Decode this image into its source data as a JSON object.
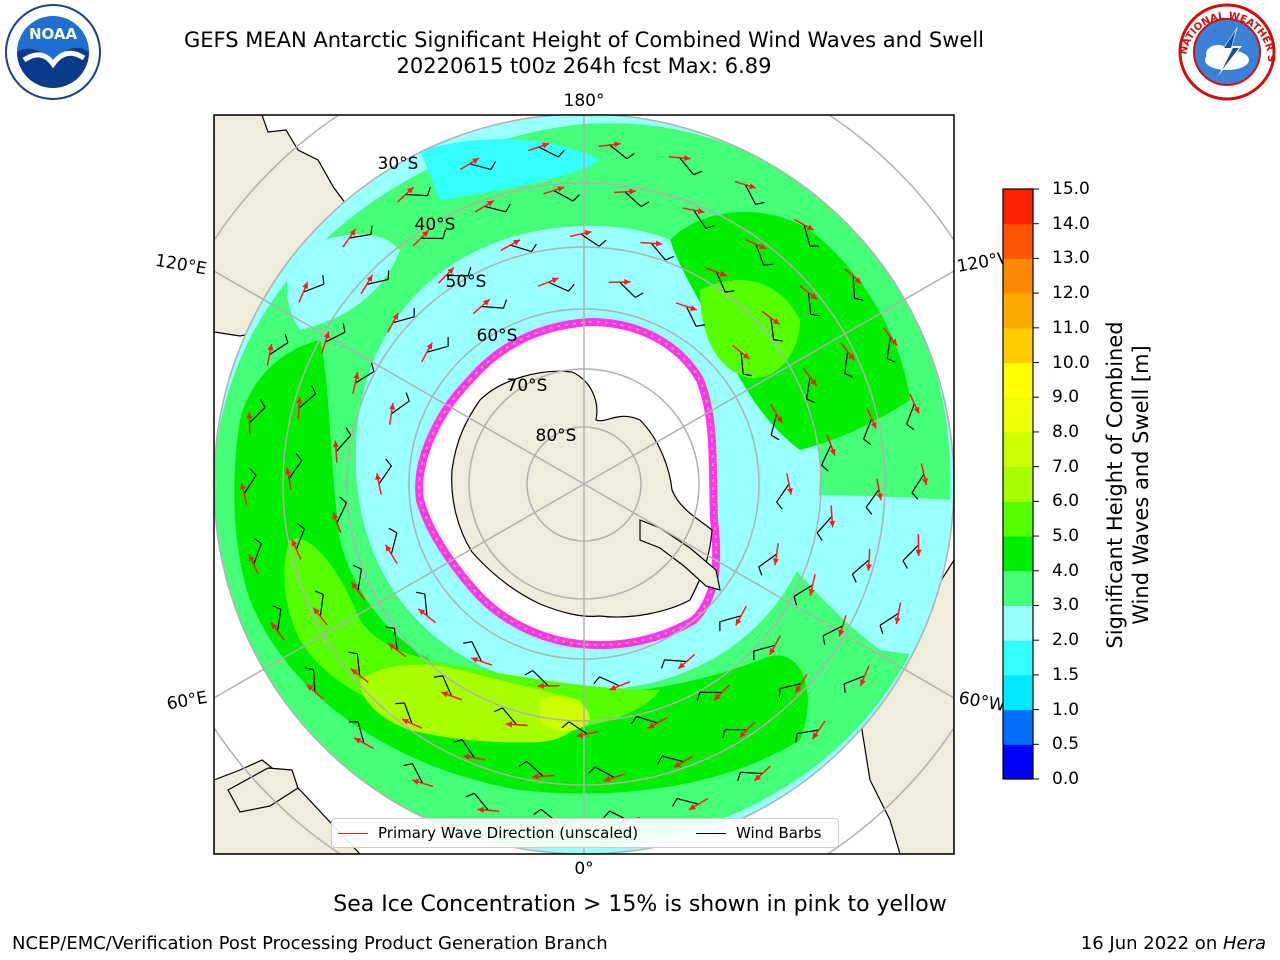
{
  "header": {
    "title_line1": "GEFS MEAN Antarctic Significant Height of Combined Wind Waves and Swell",
    "title_line2": "20220615 t00z 264h fcst   Max: 6.89"
  },
  "logos": {
    "left": {
      "icon": "noaa-logo",
      "text": "NOAA"
    },
    "right": {
      "icon": "nws-logo",
      "text": "NATIONAL WEATHER SERVICE"
    }
  },
  "map": {
    "projection": "south-polar-stereographic",
    "longitude_labels": {
      "top": "180°",
      "bottom": "0°",
      "upper_left": "120°E",
      "upper_right": "120°W",
      "lower_left": "60°E",
      "lower_right": "60°W"
    },
    "latitude_labels": [
      "30°S",
      "40°S",
      "50°S",
      "60°S",
      "70°S",
      "80°S"
    ],
    "colors": {
      "land": "#efecdc",
      "grid": "#b0b0b0",
      "wave_arrow": "#ff1a1a",
      "wind_barb": "#000000",
      "sea_ice": [
        "#ff33ff",
        "#ff66cc",
        "#ffaa33",
        "#ffee55"
      ]
    }
  },
  "colorbar": {
    "title_line1": "Significant Height of Combined",
    "title_line2": "Wind Waves and Swell [m]",
    "ticks": [
      "0.0",
      "0.5",
      "1.0",
      "1.5",
      "2.0",
      "3.0",
      "4.0",
      "5.0",
      "6.0",
      "7.0",
      "8.0",
      "9.0",
      "10.0",
      "11.0",
      "12.0",
      "13.0",
      "14.0",
      "15.0"
    ],
    "colors": [
      "#0000ff",
      "#0070ff",
      "#00e8ff",
      "#33ffff",
      "#99ffff",
      "#44ff77",
      "#00ee00",
      "#55ff00",
      "#a8ff00",
      "#ccff00",
      "#eeff00",
      "#ffff00",
      "#ffcc00",
      "#ffaa00",
      "#ff8800",
      "#ff5500",
      "#ff2200"
    ]
  },
  "legend": {
    "wave_label": "Primary Wave Direction (unscaled)",
    "wind_label": "Wind Barbs"
  },
  "note": "Sea Ice Concentration > 15% is shown in pink to yellow",
  "footer": {
    "left": "NCEP/EMC/Verification Post Processing Product Generation Branch",
    "right_date": "16 Jun 2022 on ",
    "right_host": "Hera"
  }
}
